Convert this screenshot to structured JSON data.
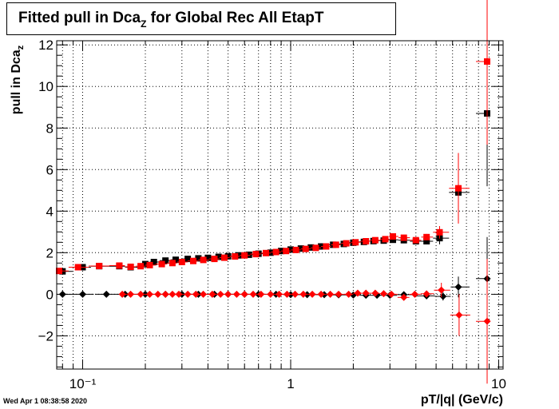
{
  "chart_data": {
    "type": "scatter",
    "title": {
      "main": "Fitted pull in Dca",
      "sub": "Z",
      "rest": " for Global Rec All EtapT"
    },
    "ylabel": {
      "main": "pull in Dca",
      "sub": "z"
    },
    "xlabel": "pT/|q| (GeV/c)",
    "x_scale": "log",
    "xlim": [
      0.075,
      10.5
    ],
    "ylim": [
      -3.6,
      12.2
    ],
    "y_ticks": [
      -2,
      0,
      2,
      4,
      6,
      8,
      10,
      12
    ],
    "y_tick_labels": [
      "−2",
      "0",
      "2",
      "4",
      "6",
      "8",
      "10",
      "12"
    ],
    "x_ticks": [
      0.1,
      1,
      10
    ],
    "x_tick_labels": [
      "10⁻¹",
      "1",
      "10"
    ],
    "grid": true,
    "colors": {
      "black": "#000000",
      "red": "#ff0000"
    },
    "series": [
      {
        "marker": "square",
        "color": "#000000",
        "points": [
          [
            0.08,
            1.1
          ],
          [
            0.1,
            1.3
          ],
          [
            0.12,
            1.35
          ],
          [
            0.15,
            1.35
          ],
          [
            0.17,
            1.3
          ],
          [
            0.2,
            1.45
          ],
          [
            0.22,
            1.55
          ],
          [
            0.25,
            1.62
          ],
          [
            0.28,
            1.66
          ],
          [
            0.32,
            1.7
          ],
          [
            0.36,
            1.73
          ],
          [
            0.4,
            1.75
          ],
          [
            0.45,
            1.8
          ],
          [
            0.5,
            1.83
          ],
          [
            0.56,
            1.87
          ],
          [
            0.63,
            1.9
          ],
          [
            0.7,
            1.95
          ],
          [
            0.8,
            2.0
          ],
          [
            0.9,
            2.08
          ],
          [
            1.0,
            2.15
          ],
          [
            1.12,
            2.2
          ],
          [
            1.25,
            2.25
          ],
          [
            1.4,
            2.3
          ],
          [
            1.6,
            2.38
          ],
          [
            1.8,
            2.42
          ],
          [
            2.0,
            2.48
          ],
          [
            2.25,
            2.52
          ],
          [
            2.5,
            2.56
          ],
          [
            2.8,
            2.58
          ],
          [
            3.1,
            2.62
          ],
          [
            3.5,
            2.6
          ],
          [
            4.0,
            2.55
          ],
          [
            4.5,
            2.55
          ],
          [
            5.2,
            2.7
          ],
          [
            6.4,
            4.9
          ],
          [
            8.8,
            8.7
          ]
        ],
        "errors": [
          0,
          0,
          0,
          0,
          0,
          0,
          0,
          0,
          0,
          0,
          0,
          0,
          0,
          0,
          0,
          0,
          0,
          0,
          0,
          0,
          0,
          0,
          0,
          0,
          0,
          0,
          0,
          0,
          0,
          0.1,
          0.12,
          0.15,
          0.15,
          0.3,
          0.8,
          3.5
        ]
      },
      {
        "marker": "diamond",
        "color": "#000000",
        "points": [
          [
            0.08,
            0.0
          ],
          [
            0.1,
            0.0
          ],
          [
            0.13,
            0.0
          ],
          [
            0.16,
            0.0
          ],
          [
            0.2,
            0.0
          ],
          [
            0.25,
            0.0
          ],
          [
            0.3,
            0.0
          ],
          [
            0.36,
            0.0
          ],
          [
            0.43,
            0.0
          ],
          [
            0.5,
            0.0
          ],
          [
            0.6,
            0.0
          ],
          [
            0.7,
            0.0
          ],
          [
            0.85,
            0.0
          ],
          [
            1.0,
            -0.02
          ],
          [
            1.2,
            -0.02
          ],
          [
            1.45,
            -0.02
          ],
          [
            1.7,
            -0.03
          ],
          [
            2.0,
            -0.04
          ],
          [
            2.3,
            -0.05
          ],
          [
            2.6,
            -0.05
          ],
          [
            3.0,
            -0.05
          ],
          [
            3.5,
            -0.02
          ],
          [
            4.5,
            -0.08
          ],
          [
            5.4,
            -0.1
          ],
          [
            6.4,
            0.35
          ],
          [
            8.8,
            0.75
          ]
        ],
        "errors": [
          0,
          0,
          0,
          0,
          0,
          0,
          0,
          0,
          0,
          0,
          0,
          0,
          0,
          0,
          0,
          0,
          0,
          0,
          0,
          0,
          0,
          0.1,
          0.15,
          0.2,
          0.5,
          2.0
        ]
      },
      {
        "marker": "square",
        "color": "#ff0000",
        "points": [
          [
            0.077,
            1.12
          ],
          [
            0.095,
            1.3
          ],
          [
            0.12,
            1.36
          ],
          [
            0.15,
            1.38
          ],
          [
            0.17,
            1.32
          ],
          [
            0.19,
            1.35
          ],
          [
            0.21,
            1.4
          ],
          [
            0.24,
            1.45
          ],
          [
            0.27,
            1.5
          ],
          [
            0.3,
            1.55
          ],
          [
            0.34,
            1.6
          ],
          [
            0.38,
            1.65
          ],
          [
            0.43,
            1.7
          ],
          [
            0.48,
            1.76
          ],
          [
            0.54,
            1.82
          ],
          [
            0.6,
            1.87
          ],
          [
            0.68,
            1.93
          ],
          [
            0.76,
            1.98
          ],
          [
            0.85,
            2.03
          ],
          [
            0.95,
            2.08
          ],
          [
            1.06,
            2.13
          ],
          [
            1.18,
            2.18
          ],
          [
            1.32,
            2.23
          ],
          [
            1.48,
            2.3
          ],
          [
            1.65,
            2.38
          ],
          [
            1.85,
            2.45
          ],
          [
            2.05,
            2.5
          ],
          [
            2.3,
            2.55
          ],
          [
            2.55,
            2.6
          ],
          [
            2.85,
            2.65
          ],
          [
            3.1,
            2.78
          ],
          [
            3.5,
            2.72
          ],
          [
            4.0,
            2.6
          ],
          [
            4.5,
            2.75
          ],
          [
            5.2,
            2.98
          ],
          [
            6.4,
            5.1
          ],
          [
            8.8,
            11.2
          ]
        ],
        "errors": [
          0.05,
          0,
          0,
          0,
          0,
          0,
          0,
          0,
          0,
          0,
          0,
          0,
          0,
          0,
          0,
          0,
          0,
          0,
          0,
          0,
          0,
          0,
          0,
          0,
          0,
          0,
          0,
          0,
          0,
          0,
          0.1,
          0.12,
          0.15,
          0.15,
          0.3,
          1.7,
          4.0
        ]
      },
      {
        "marker": "diamond",
        "color": "#ff0000",
        "points": [
          [
            0.155,
            0.0
          ],
          [
            0.17,
            0.0
          ],
          [
            0.19,
            0.0
          ],
          [
            0.21,
            0.0
          ],
          [
            0.23,
            0.0
          ],
          [
            0.25,
            0.0
          ],
          [
            0.27,
            0.0
          ],
          [
            0.29,
            0.0
          ],
          [
            0.32,
            0.0
          ],
          [
            0.35,
            0.0
          ],
          [
            0.38,
            0.0
          ],
          [
            0.42,
            0.0
          ],
          [
            0.46,
            0.0
          ],
          [
            0.5,
            0.0
          ],
          [
            0.55,
            0.0
          ],
          [
            0.6,
            0.0
          ],
          [
            0.66,
            0.0
          ],
          [
            0.72,
            0.0
          ],
          [
            0.8,
            0.0
          ],
          [
            0.88,
            0.0
          ],
          [
            0.96,
            0.0
          ],
          [
            1.05,
            0.0
          ],
          [
            1.15,
            0.0
          ],
          [
            1.27,
            0.0
          ],
          [
            1.4,
            0.0
          ],
          [
            1.55,
            0.0
          ],
          [
            1.7,
            0.0
          ],
          [
            1.9,
            0.0
          ],
          [
            2.1,
            0.05
          ],
          [
            2.3,
            0.05
          ],
          [
            2.55,
            0.05
          ],
          [
            2.8,
            0.03
          ],
          [
            3.05,
            0.0
          ],
          [
            3.5,
            -0.15
          ],
          [
            3.95,
            0.0
          ],
          [
            4.5,
            0.02
          ],
          [
            5.3,
            0.2
          ],
          [
            6.45,
            -1.0
          ],
          [
            8.8,
            -1.3
          ]
        ],
        "errors": [
          0,
          0,
          0,
          0,
          0,
          0,
          0,
          0,
          0,
          0,
          0,
          0,
          0,
          0,
          0,
          0,
          0,
          0,
          0,
          0,
          0,
          0,
          0,
          0,
          0,
          0,
          0,
          0,
          0,
          0,
          0,
          0,
          0,
          0.1,
          0.1,
          0.12,
          0.35,
          1.0,
          3.0
        ]
      }
    ]
  },
  "timestamp": "Wed Apr  1 08:38:58 2020"
}
